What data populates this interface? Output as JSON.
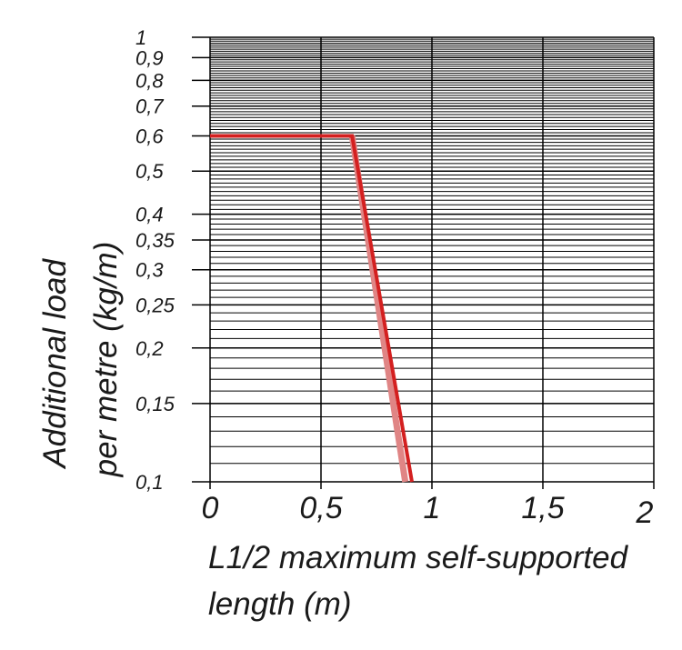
{
  "chart_data": {
    "type": "line",
    "y_scale": "log",
    "xlim": [
      0,
      2
    ],
    "ylim": [
      0.1,
      1
    ],
    "grid": true,
    "x_ticks": [
      {
        "value": 0,
        "label": "0"
      },
      {
        "value": 0.5,
        "label": "0,5"
      },
      {
        "value": 1,
        "label": "1"
      },
      {
        "value": 1.5,
        "label": "1,5"
      },
      {
        "value": 2,
        "label": "2"
      }
    ],
    "y_ticks": [
      {
        "value": 1,
        "label": "1"
      },
      {
        "value": 0.9,
        "label": "0,9"
      },
      {
        "value": 0.8,
        "label": "0,8"
      },
      {
        "value": 0.7,
        "label": "0,7"
      },
      {
        "value": 0.6,
        "label": "0,6"
      },
      {
        "value": 0.5,
        "label": "0,5"
      },
      {
        "value": 0.4,
        "label": "0,4"
      },
      {
        "value": 0.35,
        "label": "0,35"
      },
      {
        "value": 0.3,
        "label": "0,3"
      },
      {
        "value": 0.25,
        "label": "0,25"
      },
      {
        "value": 0.2,
        "label": "0,2"
      },
      {
        "value": 0.15,
        "label": "0,15"
      },
      {
        "value": 0.1,
        "label": "0,1"
      }
    ],
    "xlabel_lines": [
      "L1/2 maximum self-supported",
      "length (m)"
    ],
    "ylabel_lines": [
      "Additional load",
      "per metre (kg/m)"
    ],
    "series": [
      {
        "color": "#d42020",
        "points": [
          [
            0,
            0.6
          ],
          [
            0.64,
            0.6
          ],
          [
            0.91,
            0.1
          ]
        ]
      },
      {
        "color": "#e08585",
        "points": [
          [
            0.64,
            0.6
          ],
          [
            0.88,
            0.1
          ]
        ]
      }
    ]
  }
}
